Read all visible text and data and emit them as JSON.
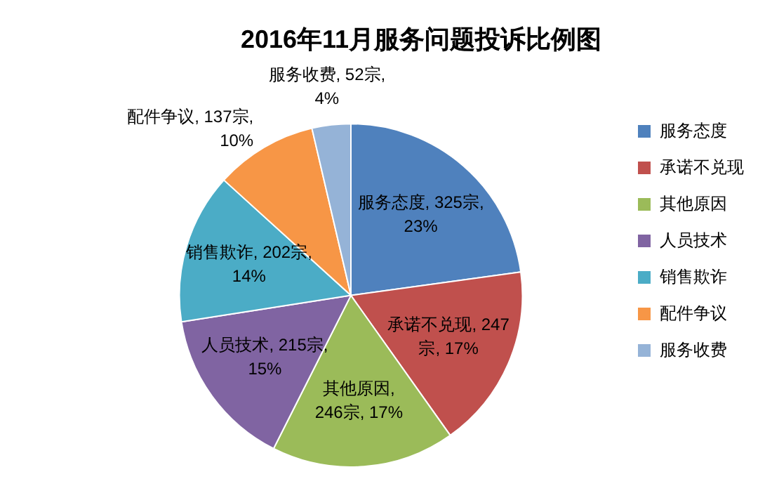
{
  "chart_data": {
    "type": "pie",
    "title": "2016年11月服务问题投诉比例图",
    "categories": [
      "服务态度",
      "承诺不兑现",
      "其他原因",
      "人员技术",
      "销售欺诈",
      "配件争议",
      "服务收费"
    ],
    "values": [
      325,
      247,
      246,
      215,
      202,
      137,
      52
    ],
    "value_labels": [
      "服务态度, 325宗,\n23%",
      "承诺不兑现, 247\n宗, 17%",
      "其他原因,\n246宗, 17%",
      "人员技术, 215宗,\n15%",
      "销售欺诈, 202宗,\n14%",
      "配件争议, 137宗,\n10%",
      "服务收费, 52宗,\n4%"
    ],
    "colors": [
      "#4f81bd",
      "#c0504d",
      "#9bbb59",
      "#8064a2",
      "#4bacc6",
      "#f79646",
      "#95b3d7"
    ],
    "legend": "right"
  }
}
